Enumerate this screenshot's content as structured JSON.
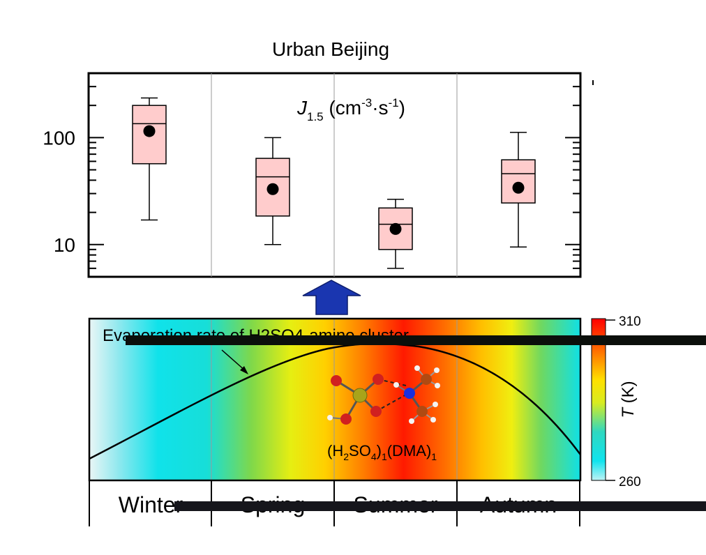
{
  "chart_data": [
    {
      "type": "box",
      "title": "Urban Beijing",
      "annotation": {
        "symbol": "J",
        "subscript": "1.5",
        "unit_open": " (cm",
        "unit_exp1": "-3",
        "unit_mid": "·s",
        "unit_exp2": "-1",
        "unit_close": ")"
      },
      "y_scale": "log",
      "ylim": [
        5,
        400
      ],
      "y_tick_labels": [
        {
          "value": 100,
          "label": "100"
        },
        {
          "value": 10,
          "label": "10"
        }
      ],
      "categories": [
        "Winter",
        "Spring",
        "Summer",
        "Autumn"
      ],
      "series": [
        {
          "category": "Winter",
          "whisker_low": 17,
          "q1": 57,
          "median": 135,
          "q3": 200,
          "whisker_high": 235,
          "mean": 115
        },
        {
          "category": "Spring",
          "whisker_low": 10,
          "q1": 18.5,
          "median": 43,
          "q3": 64,
          "whisker_high": 100,
          "mean": 33
        },
        {
          "category": "Summer",
          "whisker_low": 6,
          "q1": 9,
          "median": 15.5,
          "q3": 22,
          "whisker_high": 26.5,
          "mean": 14
        },
        {
          "category": "Autumn",
          "whisker_low": 9.5,
          "q1": 24.5,
          "median": 46,
          "q3": 62,
          "whisker_high": 112,
          "mean": 34
        }
      ],
      "colors": {
        "box_fill": "#ffcccc",
        "mean_marker": "#000000",
        "arrow": "#1a36b0"
      }
    },
    {
      "type": "heatmap",
      "annotation": "Evaporation rate of H2SO4-amine cluster",
      "molecule_label": {
        "a": "(H",
        "b": "2",
        "c": "SO",
        "d": "4",
        "e": ")",
        "f": "1",
        "g": "(DMA)",
        "h": "1"
      },
      "colorbar": {
        "label_italic": "T",
        "label_rest": " (K)",
        "max_label": "310",
        "min_label": "260",
        "range": [
          260,
          310
        ]
      },
      "categories": [
        "Winter",
        "Spring",
        "Summer",
        "Autumn"
      ],
      "trend": "evaporation rate rises from winter to a peak in summer then falls in autumn"
    }
  ]
}
